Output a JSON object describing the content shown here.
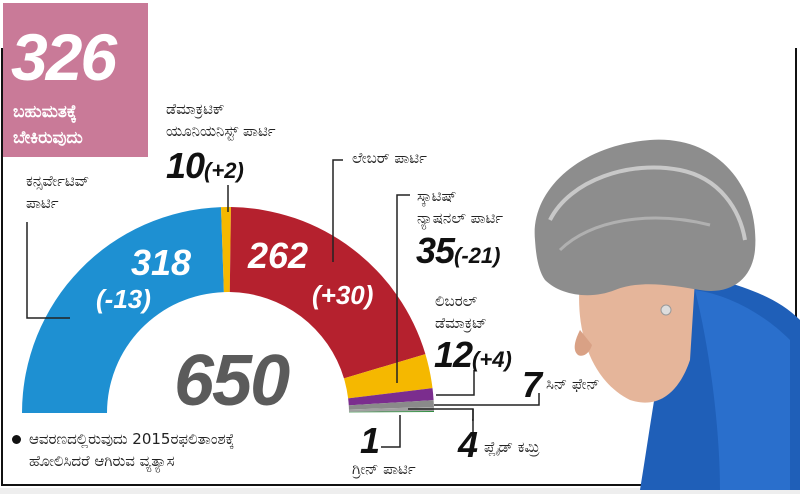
{
  "majority": {
    "value": "326",
    "label_line1": "ಬಹುಮತಕ್ಕೆ",
    "label_line2": "ಬೇಕಿರುವುದು"
  },
  "total_seats": "650",
  "legend": {
    "line1": "ಆವರಣದಲ್ಲಿರುವುದು 2015ರಫಲಿತಾಂಶಕ್ಕೆ",
    "line2": "ಹೋಲಿಸಿದರೆ ಆಗಿರುವ ವ್ಯತ್ಯಾಸ"
  },
  "parties": {
    "conservative": {
      "name1": "ಕನ್ಸರ್ವೇಟಿವ್",
      "name2": "ಪಾರ್ಟಿ",
      "seats": "318",
      "change": "(-13)"
    },
    "dup": {
      "name1": "ಡೆಮಾಕ್ರಟಿಕ್",
      "name2": "ಯೂನಿಯನಿಸ್ಟ್ ಪಾರ್ಟಿ",
      "seats": "10",
      "change": "(+2)"
    },
    "labour": {
      "name1": "ಲೇಬರ್ ಪಾರ್ಟಿ",
      "seats": "262",
      "change": "(+30)"
    },
    "snp": {
      "name1": "ಸ್ಕಾಟಿಷ್",
      "name2": "ನ್ಯಾಷನಲ್ ಪಾರ್ಟಿ",
      "seats": "35",
      "change": "(-21)"
    },
    "libdem": {
      "name1": "ಲಿಬರಲ್",
      "name2": "ಡೆಮಾಕ್ರಟ್",
      "seats": "12",
      "change": "(+4)"
    },
    "sinnfein": {
      "name1": "ಸಿನ್ ಫೇನ್",
      "seats": "7"
    },
    "plaid": {
      "name1": "ಪ್ಲೈಡ್ ಕಮ್ರಿ",
      "seats": "4"
    },
    "green": {
      "name1": "ಗ್ರೀನ್ ಪಾರ್ಟಿ",
      "seats": "1"
    }
  },
  "chart_data": {
    "type": "pie",
    "subtype": "half-donut (parliament)",
    "title": "650",
    "annotation": "326 ಬಹುಮತಕ್ಕೆ ಬೇಕಿರುವುದು",
    "categories": [
      "ಕನ್ಸರ್ವೇಟಿವ್ ಪಾರ್ಟಿ",
      "ಡೆಮಾಕ್ರಟಿಕ್ ಯೂನಿಯನಿಸ್ಟ್ ಪಾರ್ಟಿ",
      "ಲೇಬರ್ ಪಾರ್ಟಿ",
      "ಸ್ಕಾಟಿಷ್ ನ್ಯಾಷನಲ್ ಪಾರ್ಟಿ",
      "ಲಿಬರಲ್ ಡೆಮಾಕ್ರಟ್",
      "ಸಿನ್ ಫೇನ್",
      "ಪ್ಲೈಡ್ ಕಮ್ರಿ",
      "ಗ್ರೀನ್ ಪಾರ್ಟಿ"
    ],
    "values": [
      318,
      10,
      262,
      35,
      12,
      7,
      4,
      1
    ],
    "change_vs_2015": [
      -13,
      2,
      30,
      -21,
      4,
      null,
      null,
      null
    ],
    "colors": [
      "#1e90d2",
      "#f5b800",
      "#b5212e",
      "#f5b800",
      "#7b2d8e",
      "#8a8a8a",
      "#a0a0a0",
      "#2e8b3e"
    ],
    "total": 650,
    "majority": 326
  }
}
